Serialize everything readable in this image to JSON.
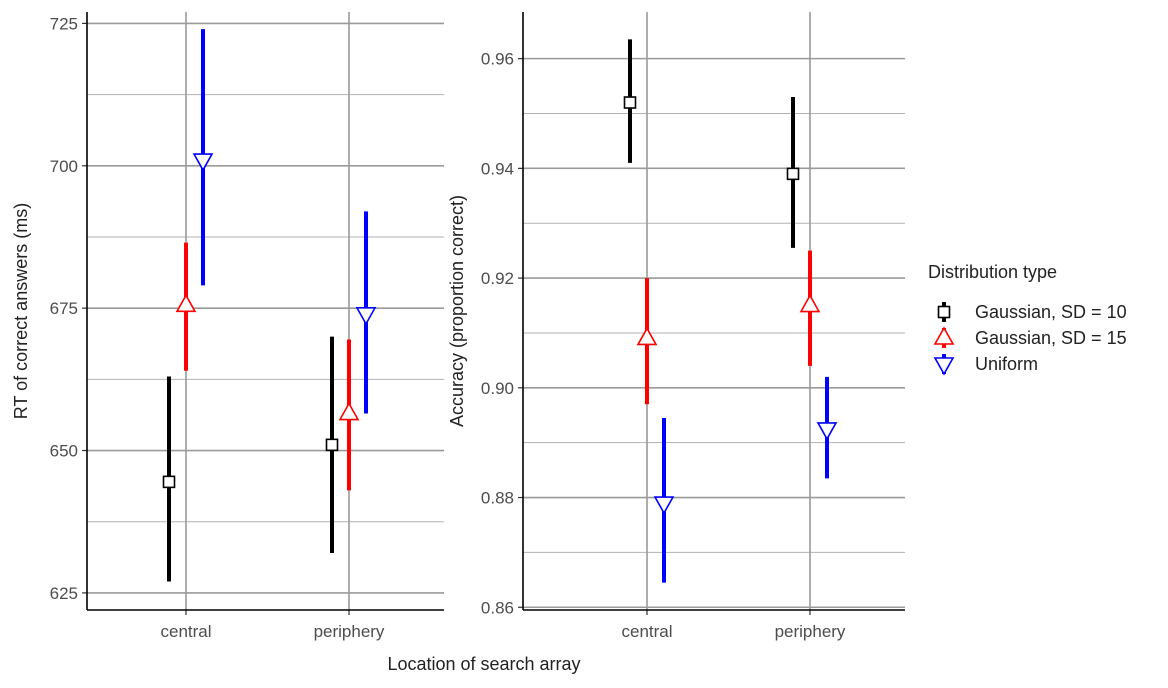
{
  "shared": {
    "xlabel": "Location of search array",
    "categories": [
      "central",
      "periphery"
    ],
    "legend": {
      "title": "Distribution type",
      "position": "right",
      "entries": [
        {
          "name": "Gaussian, SD = 10",
          "color": "#000000",
          "shape": "square"
        },
        {
          "name": "Gaussian, SD = 15",
          "color": "#ff0000",
          "shape": "triangle-up"
        },
        {
          "name": "Uniform",
          "color": "#0000ff",
          "shape": "triangle-down"
        }
      ]
    }
  },
  "chart_data": [
    {
      "type": "pointrange",
      "ylabel": "RT of correct answers (ms)",
      "ylim": [
        622,
        727
      ],
      "yticks": [
        "625",
        "650",
        "675",
        "700",
        "725"
      ],
      "categories": [
        "central",
        "periphery"
      ],
      "grid": true,
      "series": [
        {
          "name": "Gaussian, SD = 10",
          "color": "#000000",
          "shape": "square",
          "points": [
            {
              "mean": 644.5,
              "low": 627,
              "high": 663
            },
            {
              "mean": 651,
              "low": 632,
              "high": 670
            }
          ]
        },
        {
          "name": "Gaussian, SD = 15",
          "color": "#ff0000",
          "shape": "triangle-up",
          "points": [
            {
              "mean": 675.5,
              "low": 664,
              "high": 686.5
            },
            {
              "mean": 656.5,
              "low": 643,
              "high": 669.5
            }
          ]
        },
        {
          "name": "Uniform",
          "color": "#0000ff",
          "shape": "triangle-down",
          "points": [
            {
              "mean": 701,
              "low": 679,
              "high": 724
            },
            {
              "mean": 674,
              "low": 656.5,
              "high": 692
            }
          ]
        }
      ]
    },
    {
      "type": "pointrange",
      "ylabel": "Accuracy (proportion correct)",
      "ylim": [
        0.8595,
        0.9685
      ],
      "yticks": [
        "0.86",
        "0.88",
        "0.90",
        "0.92",
        "0.94",
        "0.96"
      ],
      "categories": [
        "central",
        "periphery"
      ],
      "grid": true,
      "series": [
        {
          "name": "Gaussian, SD = 10",
          "color": "#000000",
          "shape": "square",
          "points": [
            {
              "mean": 0.952,
              "low": 0.941,
              "high": 0.9635
            },
            {
              "mean": 0.939,
              "low": 0.9255,
              "high": 0.953
            }
          ]
        },
        {
          "name": "Gaussian, SD = 15",
          "color": "#ff0000",
          "shape": "triangle-up",
          "points": [
            {
              "mean": 0.909,
              "low": 0.897,
              "high": 0.92
            },
            {
              "mean": 0.915,
              "low": 0.904,
              "high": 0.925
            }
          ]
        },
        {
          "name": "Uniform",
          "color": "#0000ff",
          "shape": "triangle-down",
          "points": [
            {
              "mean": 0.879,
              "low": 0.8645,
              "high": 0.8945
            },
            {
              "mean": 0.8925,
              "low": 0.8835,
              "high": 0.902
            }
          ]
        }
      ]
    }
  ]
}
